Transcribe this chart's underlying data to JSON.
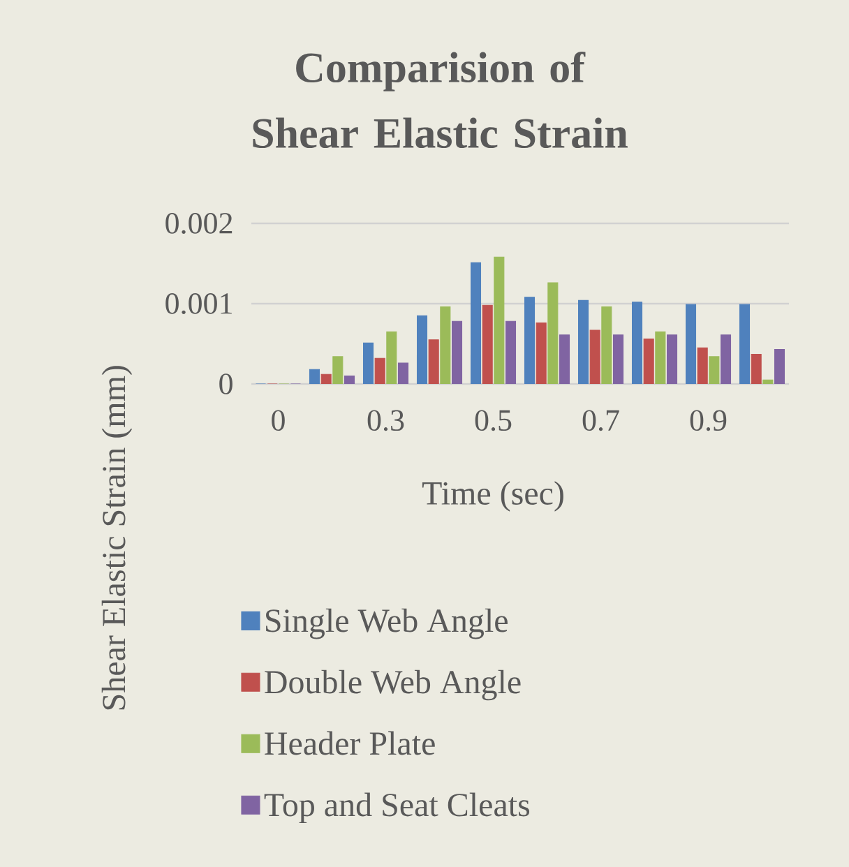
{
  "chart_data": {
    "type": "bar",
    "title": "Comparision of Shear Elastic Strain",
    "xlabel": "Time (sec)",
    "ylabel": "Shear Elastic Strain (mm)",
    "categories": [
      "0",
      null,
      "0.3",
      null,
      "0.5",
      null,
      "0.7",
      null,
      "0.9",
      null
    ],
    "series": [
      {
        "name": "Single Web Angle",
        "color": "#4f81bd",
        "values": [
          0,
          0.00018,
          0.00051,
          0.00085,
          0.00151,
          0.00108,
          0.00104,
          0.00102,
          0.00099,
          0.00099
        ]
      },
      {
        "name": "Double Web Angle",
        "color": "#c0504d",
        "values": [
          0,
          0.00012,
          0.00032,
          0.00055,
          0.00098,
          0.00076,
          0.00067,
          0.00056,
          0.00045,
          0.00037
        ]
      },
      {
        "name": "Header Plate",
        "color": "#9bbb59",
        "values": [
          0,
          0.00034,
          0.00065,
          0.00096,
          0.00158,
          0.00126,
          0.00096,
          0.00065,
          0.00034,
          5e-05
        ]
      },
      {
        "name": "Top and Seat Cleats",
        "color": "#8064a2",
        "values": [
          0,
          0.0001,
          0.00026,
          0.00078,
          0.00078,
          0.00061,
          0.00061,
          0.00061,
          0.00061,
          0.00043
        ]
      }
    ],
    "ylim": [
      0,
      0.002
    ],
    "yticks": [
      0,
      0.001,
      0.002
    ],
    "grid": "y",
    "legend": "bottom"
  }
}
